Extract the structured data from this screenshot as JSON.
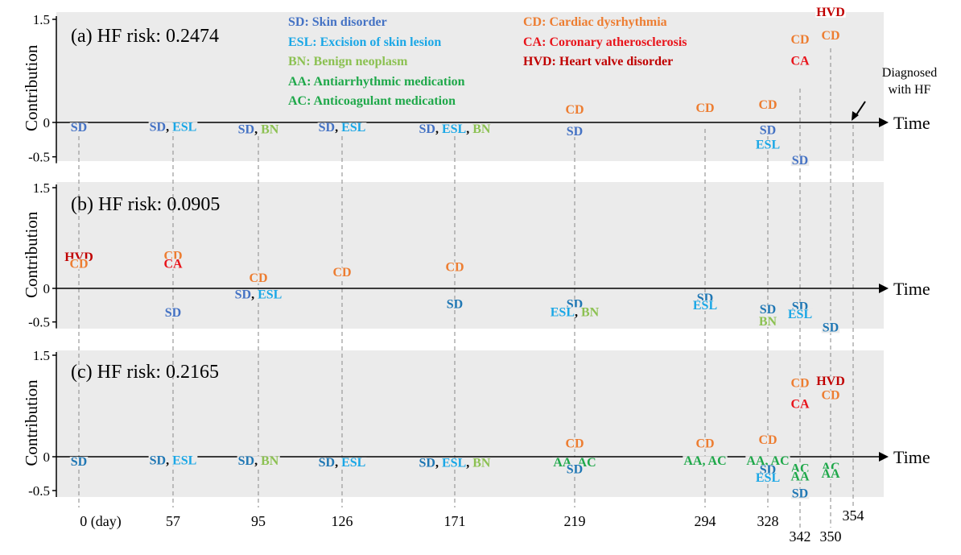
{
  "chart_data": {
    "type": "scatter",
    "ylabel": "Contribution",
    "xlabel": "Time",
    "time_labels": [
      "0 (day)",
      "57",
      "95",
      "126",
      "171",
      "219",
      "294",
      "328",
      "342",
      "350",
      "354"
    ],
    "time_points": [
      0,
      57,
      95,
      126,
      171,
      219,
      294,
      328,
      342,
      350,
      354
    ],
    "ytick_labels": [
      "1.5",
      "0",
      "-0.5"
    ],
    "ylim": [
      -0.5,
      1.5
    ],
    "diagnosis_annotation": [
      "Diagnosed",
      "with HF"
    ],
    "legend": [
      {
        "text": "SD: Skin disorder",
        "color": "#4472C4"
      },
      {
        "text": "ESL: Excision of skin lesion",
        "color": "#1AA7E6"
      },
      {
        "text": "BN: Benign neoplasm",
        "color": "#8CC152"
      },
      {
        "text": "AA: Antiarrhythmic medication",
        "color": "#1FA84A"
      },
      {
        "text": "AC: Anticoagulant medication",
        "color": "#1FA84A"
      },
      {
        "text": "CD: Cardiac dysrhythmia",
        "color": "#ED7D31"
      },
      {
        "text": "CA: Coronary atherosclerosis",
        "color": "#E8141B"
      },
      {
        "text": "HVD: Heart valve disorder",
        "color": "#C00000"
      }
    ],
    "panels": [
      {
        "label": "(a)",
        "risk_text": "HF risk: 0.2474",
        "events": [
          {
            "t": 0,
            "y": -0.06,
            "parts": [
              {
                "text": "SD",
                "color": "#4472C4"
              }
            ]
          },
          {
            "t": 57,
            "y": -0.05,
            "parts": [
              {
                "text": "SD",
                "color": "#4472C4"
              },
              {
                "text": ", ",
                "color": "#000000"
              },
              {
                "text": "ESL",
                "color": "#1AA7E6"
              }
            ]
          },
          {
            "t": 95,
            "y": -0.09,
            "parts": [
              {
                "text": "SD",
                "color": "#4472C4"
              },
              {
                "text": ", ",
                "color": "#000000"
              },
              {
                "text": "BN",
                "color": "#8CC152"
              }
            ]
          },
          {
            "t": 126,
            "y": -0.06,
            "parts": [
              {
                "text": "SD",
                "color": "#4472C4"
              },
              {
                "text": ", ",
                "color": "#000000"
              },
              {
                "text": "ESL",
                "color": "#1AA7E6"
              }
            ]
          },
          {
            "t": 171,
            "y": -0.08,
            "parts": [
              {
                "text": "SD",
                "color": "#4472C4"
              },
              {
                "text": ", ",
                "color": "#000000"
              },
              {
                "text": "ESL",
                "color": "#1AA7E6"
              },
              {
                "text": ", ",
                "color": "#000000"
              },
              {
                "text": "BN",
                "color": "#8CC152"
              }
            ]
          },
          {
            "t": 219,
            "y": 0.2,
            "parts": [
              {
                "text": "CD",
                "color": "#ED7D31"
              }
            ]
          },
          {
            "t": 219,
            "y": -0.12,
            "parts": [
              {
                "text": "SD",
                "color": "#4472C4"
              }
            ]
          },
          {
            "t": 294,
            "y": 0.22,
            "parts": [
              {
                "text": "CD",
                "color": "#ED7D31"
              }
            ]
          },
          {
            "t": 328,
            "y": 0.27,
            "parts": [
              {
                "text": "CD",
                "color": "#ED7D31"
              }
            ]
          },
          {
            "t": 328,
            "y": -0.1,
            "parts": [
              {
                "text": "SD",
                "color": "#4472C4"
              }
            ]
          },
          {
            "t": 328,
            "y": -0.31,
            "parts": [
              {
                "text": "ESL",
                "color": "#1AA7E6"
              }
            ]
          },
          {
            "t": 342,
            "y": 1.22,
            "parts": [
              {
                "text": "CD",
                "color": "#ED7D31"
              }
            ]
          },
          {
            "t": 342,
            "y": 0.91,
            "parts": [
              {
                "text": "CA",
                "color": "#E8141B"
              }
            ]
          },
          {
            "t": 342,
            "y": -0.54,
            "parts": [
              {
                "text": "SD",
                "color": "#4472C4"
              }
            ]
          },
          {
            "t": 350,
            "y": 1.62,
            "parts": [
              {
                "text": "HVD",
                "color": "#C00000"
              }
            ]
          },
          {
            "t": 350,
            "y": 1.28,
            "parts": [
              {
                "text": "CD",
                "color": "#ED7D31"
              }
            ]
          }
        ]
      },
      {
        "label": "(b)",
        "risk_text": "HF risk: 0.0905",
        "events": [
          {
            "t": 0,
            "y": 0.48,
            "parts": [
              {
                "text": "HVD",
                "color": "#C00000"
              }
            ]
          },
          {
            "t": 0,
            "y": 0.38,
            "parts": [
              {
                "text": "CD",
                "color": "#ED7D31"
              }
            ]
          },
          {
            "t": 57,
            "y": 0.5,
            "parts": [
              {
                "text": "CD",
                "color": "#ED7D31"
              }
            ]
          },
          {
            "t": 57,
            "y": 0.38,
            "parts": [
              {
                "text": "CA",
                "color": "#E8141B"
              }
            ]
          },
          {
            "t": 57,
            "y": -0.35,
            "parts": [
              {
                "text": "SD",
                "color": "#4472C4"
              }
            ]
          },
          {
            "t": 95,
            "y": 0.17,
            "parts": [
              {
                "text": "CD",
                "color": "#ED7D31"
              }
            ]
          },
          {
            "t": 95,
            "y": -0.08,
            "parts": [
              {
                "text": "SD",
                "color": "#4472C4"
              },
              {
                "text": ", ",
                "color": "#000000"
              },
              {
                "text": "ESL",
                "color": "#1AA7E6"
              }
            ]
          },
          {
            "t": 126,
            "y": 0.25,
            "parts": [
              {
                "text": "CD",
                "color": "#ED7D31"
              }
            ]
          },
          {
            "t": 171,
            "y": 0.33,
            "parts": [
              {
                "text": "CD",
                "color": "#ED7D31"
              }
            ]
          },
          {
            "t": 171,
            "y": -0.22,
            "parts": [
              {
                "text": "SD",
                "color": "#1F77B4"
              }
            ]
          },
          {
            "t": 219,
            "y": -0.22,
            "parts": [
              {
                "text": "SD",
                "color": "#1F77B4"
              }
            ]
          },
          {
            "t": 219,
            "y": -0.34,
            "parts": [
              {
                "text": "ESL",
                "color": "#1AA7E6"
              },
              {
                "text": ", ",
                "color": "#000000"
              },
              {
                "text": "BN",
                "color": "#8CC152"
              }
            ]
          },
          {
            "t": 294,
            "y": -0.13,
            "parts": [
              {
                "text": "SD",
                "color": "#1F77B4"
              }
            ]
          },
          {
            "t": 294,
            "y": -0.24,
            "parts": [
              {
                "text": "ESL",
                "color": "#1AA7E6"
              }
            ]
          },
          {
            "t": 328,
            "y": -0.3,
            "parts": [
              {
                "text": "SD",
                "color": "#1F77B4"
              }
            ]
          },
          {
            "t": 328,
            "y": -0.48,
            "parts": [
              {
                "text": "BN",
                "color": "#8CC152"
              }
            ]
          },
          {
            "t": 342,
            "y": -0.26,
            "parts": [
              {
                "text": "SD",
                "color": "#1F77B4"
              }
            ]
          },
          {
            "t": 342,
            "y": -0.37,
            "parts": [
              {
                "text": "ESL",
                "color": "#1AA7E6"
              }
            ]
          },
          {
            "t": 350,
            "y": -0.57,
            "parts": [
              {
                "text": "SD",
                "color": "#1F77B4"
              }
            ]
          }
        ]
      },
      {
        "label": "(c)",
        "risk_text": "HF risk: 0.2165",
        "events": [
          {
            "t": 0,
            "y": -0.06,
            "parts": [
              {
                "text": "SD",
                "color": "#1F77B4"
              }
            ]
          },
          {
            "t": 57,
            "y": -0.04,
            "parts": [
              {
                "text": "SD",
                "color": "#1F77B4"
              },
              {
                "text": ", ",
                "color": "#000000"
              },
              {
                "text": "ESL",
                "color": "#1AA7E6"
              }
            ]
          },
          {
            "t": 95,
            "y": -0.05,
            "parts": [
              {
                "text": "SD",
                "color": "#1F77B4"
              },
              {
                "text": ", ",
                "color": "#000000"
              },
              {
                "text": "BN",
                "color": "#8CC152"
              }
            ]
          },
          {
            "t": 126,
            "y": -0.07,
            "parts": [
              {
                "text": "SD",
                "color": "#1F77B4"
              },
              {
                "text": ", ",
                "color": "#000000"
              },
              {
                "text": "ESL",
                "color": "#1AA7E6"
              }
            ]
          },
          {
            "t": 171,
            "y": -0.08,
            "parts": [
              {
                "text": "SD",
                "color": "#1F77B4"
              },
              {
                "text": ", ",
                "color": "#000000"
              },
              {
                "text": "ESL",
                "color": "#1AA7E6"
              },
              {
                "text": ", ",
                "color": "#000000"
              },
              {
                "text": "BN",
                "color": "#8CC152"
              }
            ]
          },
          {
            "t": 219,
            "y": 0.21,
            "parts": [
              {
                "text": "CD",
                "color": "#ED7D31"
              }
            ]
          },
          {
            "t": 219,
            "y": -0.07,
            "parts": [
              {
                "text": "AA, AC",
                "color": "#1FA84A"
              }
            ]
          },
          {
            "t": 219,
            "y": -0.17,
            "parts": [
              {
                "text": "SD",
                "color": "#1F77B4"
              }
            ]
          },
          {
            "t": 294,
            "y": 0.21,
            "parts": [
              {
                "text": "CD",
                "color": "#ED7D31"
              }
            ]
          },
          {
            "t": 294,
            "y": -0.05,
            "parts": [
              {
                "text": "AA, AC",
                "color": "#1FA84A"
              }
            ]
          },
          {
            "t": 328,
            "y": 0.26,
            "parts": [
              {
                "text": "CD",
                "color": "#ED7D31"
              }
            ]
          },
          {
            "t": 328,
            "y": -0.05,
            "parts": [
              {
                "text": "AA, AC",
                "color": "#1FA84A"
              }
            ]
          },
          {
            "t": 328,
            "y": -0.18,
            "parts": [
              {
                "text": "SD",
                "color": "#1F77B4"
              }
            ]
          },
          {
            "t": 328,
            "y": -0.3,
            "parts": [
              {
                "text": "ESL",
                "color": "#1AA7E6"
              }
            ]
          },
          {
            "t": 342,
            "y": 1.1,
            "parts": [
              {
                "text": "CD",
                "color": "#ED7D31"
              }
            ]
          },
          {
            "t": 342,
            "y": 0.79,
            "parts": [
              {
                "text": "CA",
                "color": "#E8141B"
              }
            ]
          },
          {
            "t": 342,
            "y": -0.16,
            "parts": [
              {
                "text": "AC",
                "color": "#1FA84A"
              }
            ]
          },
          {
            "t": 342,
            "y": -0.28,
            "parts": [
              {
                "text": "AA",
                "color": "#1FA84A"
              }
            ]
          },
          {
            "t": 342,
            "y": -0.53,
            "parts": [
              {
                "text": "SD",
                "color": "#1F77B4"
              }
            ]
          },
          {
            "t": 350,
            "y": 1.13,
            "parts": [
              {
                "text": "HVD",
                "color": "#C00000"
              }
            ]
          },
          {
            "t": 350,
            "y": 0.92,
            "parts": [
              {
                "text": "CD",
                "color": "#ED7D31"
              }
            ]
          },
          {
            "t": 350,
            "y": -0.14,
            "parts": [
              {
                "text": "AC",
                "color": "#1FA84A"
              }
            ]
          },
          {
            "t": 350,
            "y": -0.24,
            "parts": [
              {
                "text": "AA",
                "color": "#1FA84A"
              }
            ]
          }
        ]
      }
    ]
  }
}
